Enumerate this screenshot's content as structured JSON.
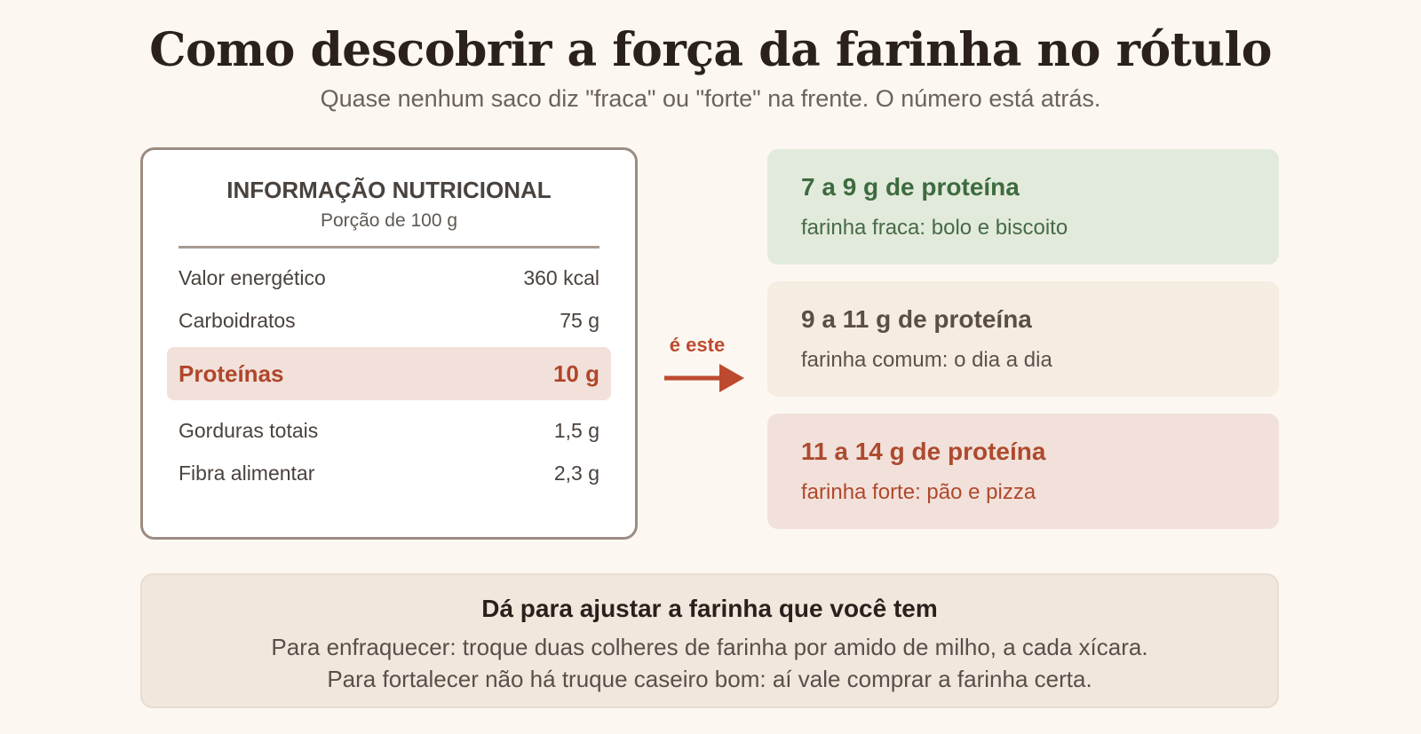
{
  "header": {
    "title": "Como descobrir a força da farinha no rótulo",
    "subtitle": "Quase nenhum saco diz \"fraca\" ou \"forte\" na frente. O número está atrás."
  },
  "nutrition_label": {
    "heading": "INFORMAÇÃO NUTRICIONAL",
    "portion": "Porção de 100 g",
    "rows": [
      {
        "name": "Valor energético",
        "value": "360 kcal"
      },
      {
        "name": "Carboidratos",
        "value": "75 g"
      },
      {
        "name": "Proteínas",
        "value": "10 g"
      },
      {
        "name": "Gorduras totais",
        "value": "1,5 g"
      },
      {
        "name": "Fibra alimentar",
        "value": "2,3 g"
      }
    ]
  },
  "arrow": {
    "label": "é este"
  },
  "bands": [
    {
      "title": "7 a 9 g de proteína",
      "desc": "farinha fraca: bolo e biscoito",
      "color": "#3d6b3f"
    },
    {
      "title": "9 a 11 g de proteína",
      "desc": "farinha comum: o dia a dia",
      "color": "#5b4e45"
    },
    {
      "title": "11 a 14 g de proteína",
      "desc": "farinha forte: pão e pizza",
      "color": "#ad4a2e"
    }
  ],
  "tips": {
    "title": "Dá para ajustar a farinha que você tem",
    "line1": "Para enfraquecer: troque duas colheres de farinha por amido de milho, a cada xícara.",
    "line2": "Para fortalecer não há truque caseiro bom: aí vale comprar a farinha certa."
  },
  "colors": {
    "background": "#fcf7f1",
    "accent": "#bd4a2f",
    "highlight": "#f2e1da"
  }
}
